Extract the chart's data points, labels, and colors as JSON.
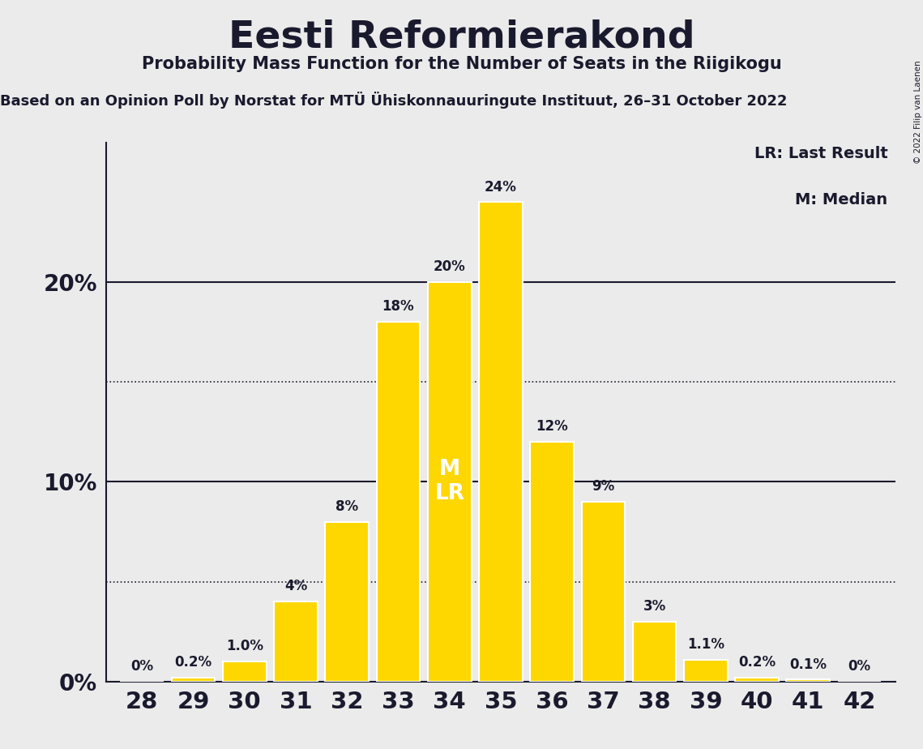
{
  "title": "Eesti Reformierakond",
  "subtitle": "Probability Mass Function for the Number of Seats in the Riigikogu",
  "source_line": "Based on an Opinion Poll by Norstat for MTÜ Ühiskonnauuringute Instituut, 26–31 October 2022",
  "copyright": "© 2022 Filip van Laenen",
  "seats": [
    28,
    29,
    30,
    31,
    32,
    33,
    34,
    35,
    36,
    37,
    38,
    39,
    40,
    41,
    42
  ],
  "probabilities": [
    0.0,
    0.2,
    1.0,
    4.0,
    8.0,
    18.0,
    20.0,
    24.0,
    12.0,
    9.0,
    3.0,
    1.1,
    0.2,
    0.1,
    0.0
  ],
  "bar_color": "#FFD700",
  "bar_edge_color": "#FFFFFF",
  "median_seat": 34,
  "lr_seat": 34,
  "legend_lr": "LR: Last Result",
  "legend_m": "M: Median",
  "background_color": "#EBEBEB",
  "plot_bg_color": "#EBEBEB",
  "title_fontsize": 34,
  "subtitle_fontsize": 15,
  "source_fontsize": 13,
  "solid_lines": [
    10.0,
    20.0
  ],
  "dotted_lines": [
    5.0,
    15.0
  ],
  "ytick_labels": [
    "0%",
    "10%",
    "20%"
  ],
  "ytick_values": [
    0,
    10,
    20
  ],
  "ylim": [
    0,
    27
  ],
  "xlim_min": 27.3,
  "xlim_max": 42.7
}
